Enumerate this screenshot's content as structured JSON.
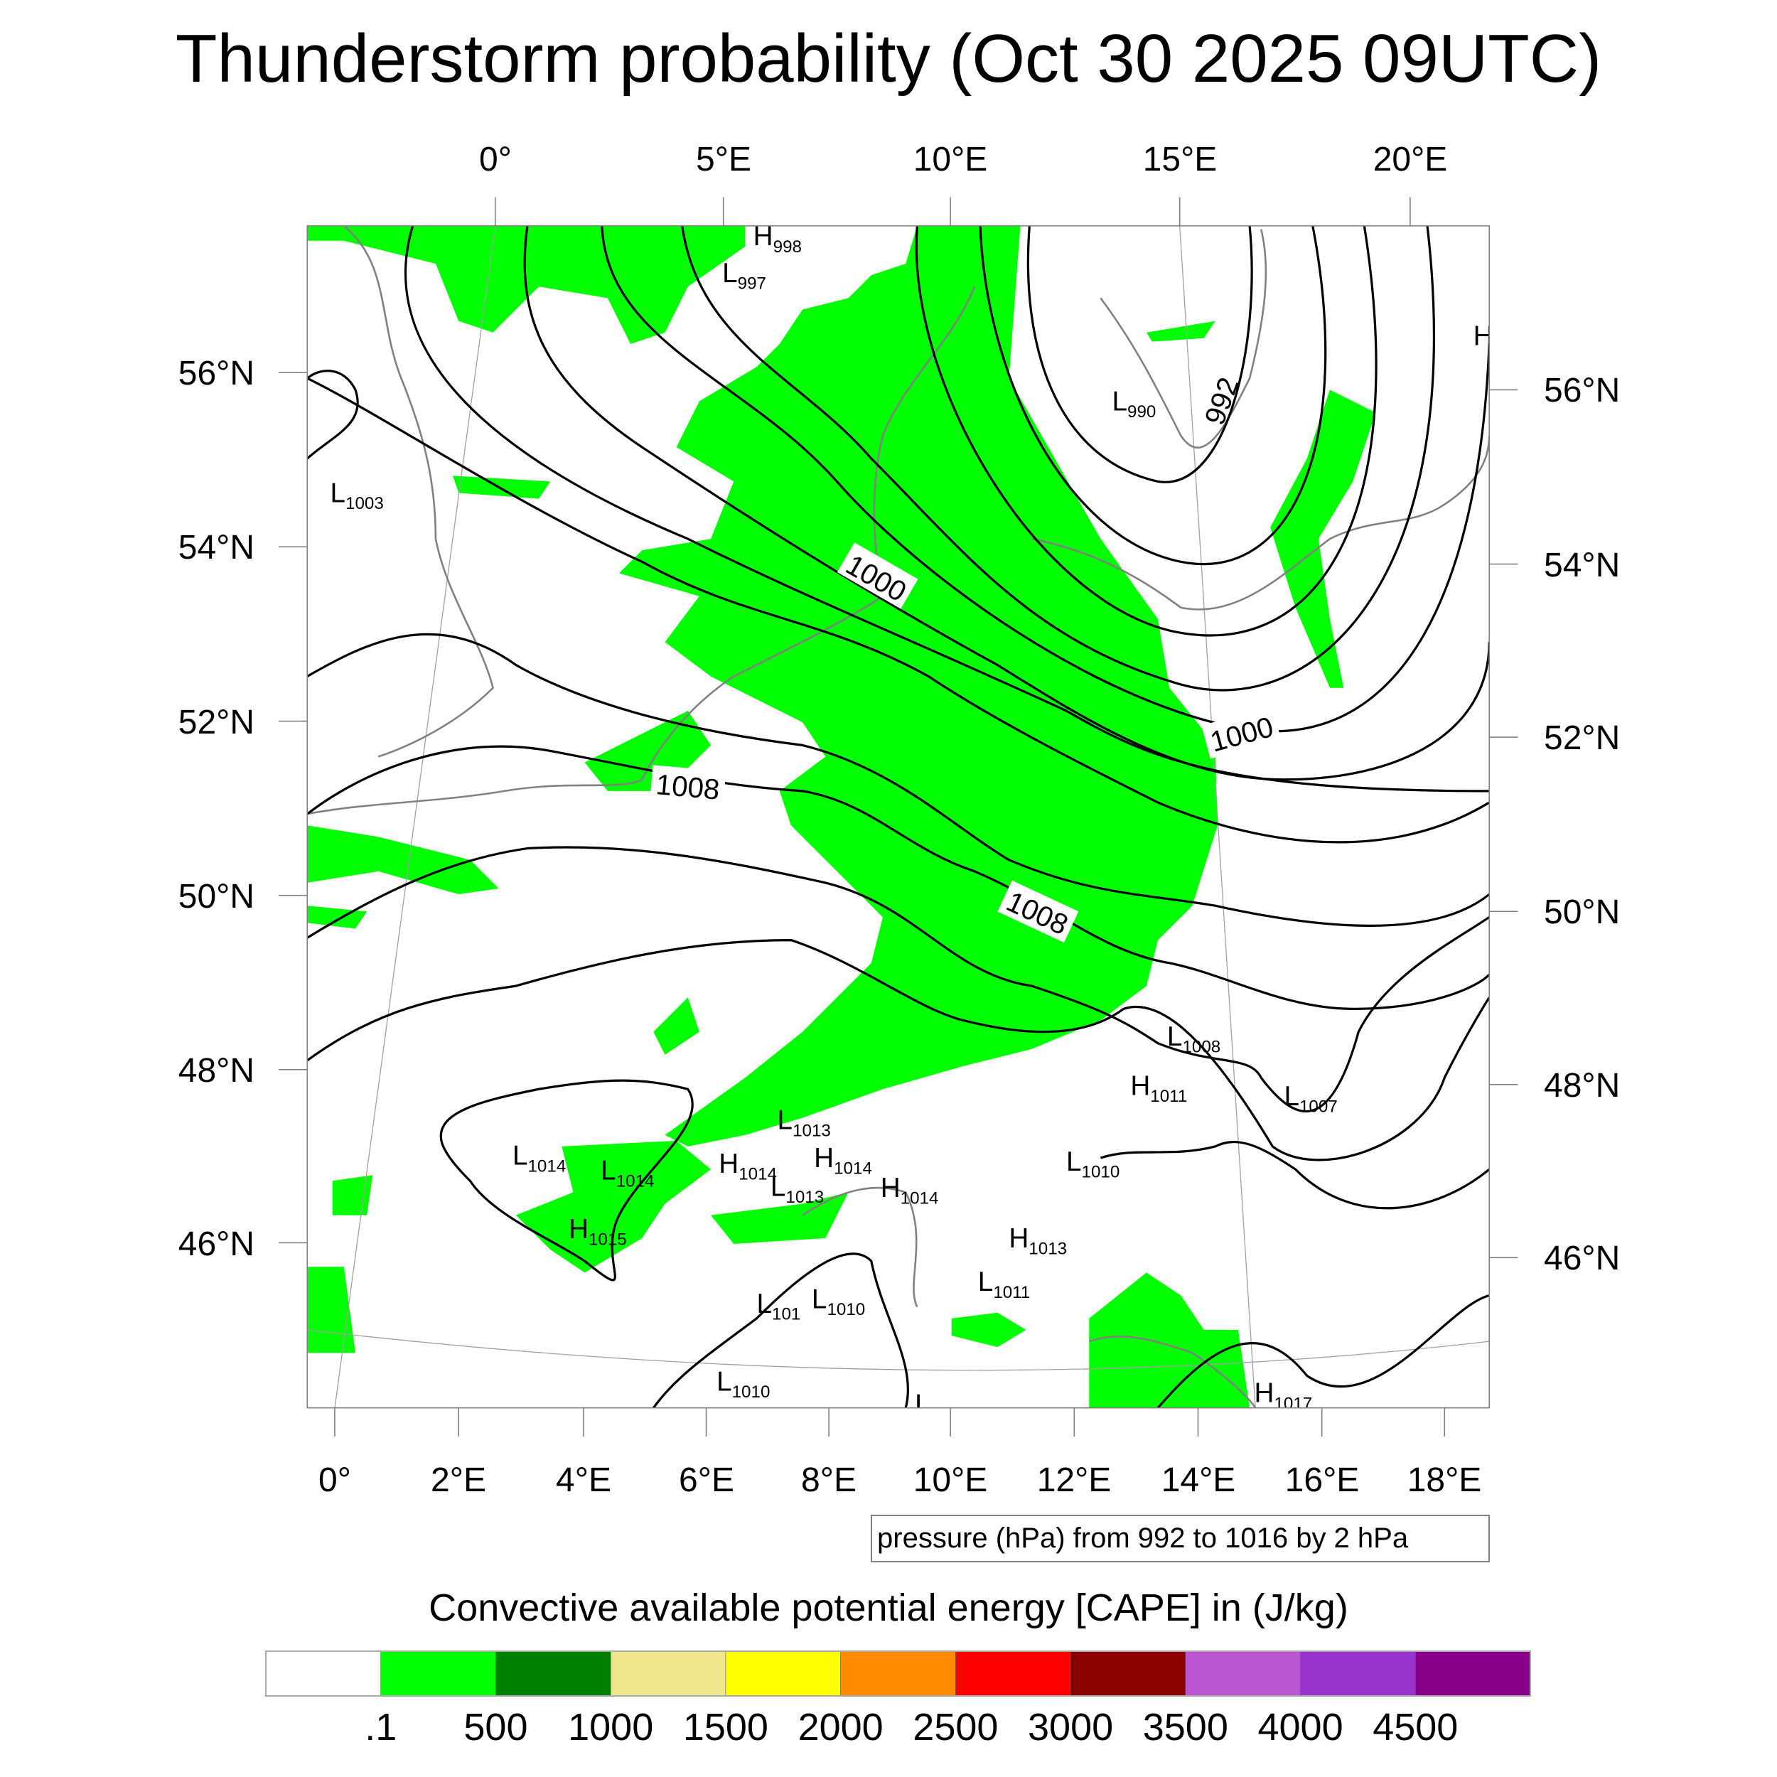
{
  "title": "Thunderstorm probability (Oct 30 2025 09UTC)",
  "top_lon_labels": [
    "0°",
    "5°E",
    "10°E",
    "15°E",
    "20°E"
  ],
  "bottom_lon_labels": [
    "0°",
    "2°E",
    "4°E",
    "6°E",
    "8°E",
    "10°E",
    "12°E",
    "14°E",
    "16°E",
    "18°E"
  ],
  "left_lat_labels": [
    "56°N",
    "54°N",
    "52°N",
    "50°N",
    "48°N",
    "46°N"
  ],
  "right_lat_labels": [
    "56°N",
    "54°N",
    "52°N",
    "50°N",
    "48°N",
    "46°N"
  ],
  "contour_labels": [
    "1000",
    "992",
    "1000",
    "1008",
    "1008"
  ],
  "pressure_centers": [
    {
      "type": "H",
      "value": "998"
    },
    {
      "type": "L",
      "value": "997"
    },
    {
      "type": "L",
      "value": "990"
    },
    {
      "type": "L",
      "value": "1003"
    },
    {
      "type": "L",
      "value": "1008"
    },
    {
      "type": "H",
      "value": "1011"
    },
    {
      "type": "L",
      "value": "1007"
    },
    {
      "type": "L",
      "value": "1013"
    },
    {
      "type": "L",
      "value": "1014"
    },
    {
      "type": "L",
      "value": "1014"
    },
    {
      "type": "H",
      "value": "1014"
    },
    {
      "type": "H",
      "value": "1014"
    },
    {
      "type": "H",
      "value": "1014"
    },
    {
      "type": "L",
      "value": "1013"
    },
    {
      "type": "L",
      "value": "1010"
    },
    {
      "type": "H",
      "value": "1015"
    },
    {
      "type": "H",
      "value": "1013"
    },
    {
      "type": "L",
      "value": "1011"
    },
    {
      "type": "L",
      "value": "101"
    },
    {
      "type": "L",
      "value": "1010"
    },
    {
      "type": "L",
      "value": "1010"
    },
    {
      "type": "H",
      "value": "1017"
    },
    {
      "type": "H",
      "value": ""
    },
    {
      "type": "L",
      "value": ""
    }
  ],
  "contour_info": "pressure (hPa) from 992 to 1016 by 2 hPa",
  "colorbar": {
    "title": "Convective available potential energy [CAPE] in (J/kg)",
    "colors": [
      "#ffffff",
      "#00ff00",
      "#008000",
      "#f0e68c",
      "#ffff00",
      "#ff8c00",
      "#ff0000",
      "#8b0000",
      "#ba55d3",
      "#9932cc",
      "#8b008b"
    ],
    "labels": [
      ".1",
      "500",
      "1000",
      "1500",
      "2000",
      "2500",
      "3000",
      "3500",
      "4000",
      "4500"
    ]
  },
  "cape_fill_color": "#00ff00"
}
